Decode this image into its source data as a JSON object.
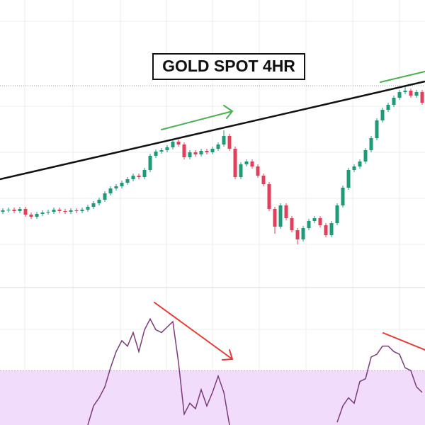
{
  "chart_data": {
    "type": "candlestick",
    "title": "GOLD SPOT 4HR",
    "up_color": "#1f9a78",
    "down_color": "#e0405a",
    "ylim": [
      0,
      400
    ],
    "open": [
      101,
      103,
      104,
      102,
      105,
      97,
      94,
      98,
      100,
      101,
      104,
      102,
      101,
      103,
      102,
      104,
      108,
      113,
      118,
      127,
      134,
      137,
      142,
      147,
      152,
      150,
      160,
      180,
      186,
      188,
      192,
      200,
      196,
      178,
      185,
      182,
      187,
      185,
      190,
      196,
      208,
      190,
      150,
      168,
      172,
      165,
      152,
      140,
      105,
      80,
      110,
      92,
      75,
      62,
      78,
      88,
      92,
      82,
      68,
      85,
      110,
      135,
      160,
      165,
      172,
      188,
      205,
      230,
      245,
      252,
      262,
      270,
      272,
      265,
      270
    ],
    "high": [
      106,
      107,
      107,
      108,
      108,
      100,
      101,
      103,
      104,
      107,
      107,
      105,
      106,
      106,
      107,
      111,
      116,
      121,
      130,
      137,
      140,
      145,
      150,
      155,
      155,
      163,
      183,
      189,
      191,
      195,
      203,
      203,
      199,
      188,
      188,
      190,
      190,
      193,
      199,
      216,
      211,
      193,
      171,
      175,
      175,
      168,
      155,
      143,
      108,
      113,
      113,
      95,
      78,
      81,
      91,
      95,
      95,
      85,
      88,
      113,
      138,
      163,
      168,
      175,
      191,
      208,
      233,
      248,
      255,
      265,
      273,
      280,
      275,
      273,
      273
    ],
    "low": [
      98,
      100,
      99,
      99,
      94,
      91,
      91,
      95,
      97,
      98,
      99,
      98,
      98,
      99,
      99,
      101,
      105,
      110,
      115,
      124,
      131,
      134,
      139,
      144,
      147,
      147,
      157,
      177,
      183,
      185,
      189,
      193,
      175,
      175,
      179,
      179,
      182,
      182,
      187,
      193,
      187,
      147,
      147,
      165,
      162,
      149,
      137,
      102,
      70,
      77,
      89,
      72,
      55,
      59,
      75,
      85,
      79,
      65,
      65,
      82,
      107,
      132,
      157,
      162,
      169,
      185,
      202,
      227,
      242,
      249,
      259,
      267,
      262,
      262,
      252
    ],
    "close": [
      103,
      104,
      102,
      105,
      97,
      94,
      98,
      100,
      101,
      104,
      102,
      101,
      103,
      102,
      104,
      108,
      113,
      118,
      127,
      134,
      137,
      142,
      147,
      152,
      150,
      160,
      180,
      186,
      188,
      192,
      200,
      196,
      178,
      185,
      182,
      187,
      185,
      190,
      196,
      208,
      190,
      150,
      168,
      172,
      165,
      152,
      140,
      105,
      80,
      110,
      92,
      75,
      62,
      78,
      88,
      92,
      82,
      68,
      85,
      110,
      135,
      160,
      165,
      172,
      188,
      205,
      230,
      245,
      252,
      262,
      270,
      272,
      265,
      270,
      255
    ],
    "rsi": {
      "color": "#7a3b78",
      "band_color": "#f1ddfb",
      "level": 70,
      "ylim": [
        50,
        100
      ],
      "values": [
        null,
        null,
        null,
        null,
        null,
        null,
        null,
        null,
        null,
        null,
        null,
        null,
        null,
        null,
        null,
        50,
        57,
        60,
        64,
        71,
        77,
        81,
        79,
        84,
        77,
        85,
        89,
        85,
        84,
        86,
        88,
        73,
        54,
        58,
        56,
        63,
        57,
        62,
        68,
        62,
        50,
        null,
        null,
        null,
        null,
        null,
        null,
        null,
        null,
        null,
        null,
        null,
        null,
        null,
        null,
        null,
        null,
        null,
        null,
        51,
        57,
        60,
        58,
        66,
        67,
        75,
        76,
        79,
        79,
        77,
        76,
        71,
        70,
        64,
        62
      ]
    }
  }
}
